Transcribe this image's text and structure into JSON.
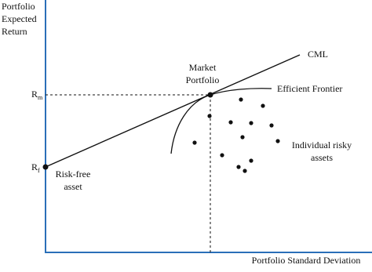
{
  "axes": {
    "y_label": [
      "Portfolio",
      "Expected",
      "Return"
    ],
    "x_label": "Portfolio Standard Deviation"
  },
  "labels": {
    "rm": {
      "main": "R",
      "sub": "m"
    },
    "rf": {
      "main": "R",
      "sub": "f"
    },
    "cml": "CML",
    "market_portfolio": [
      "Market",
      "Portfolio"
    ],
    "efficient_frontier": "Efficient Frontier",
    "risky_assets": [
      "Individual risky",
      "assets"
    ],
    "risk_free_asset": [
      "Risk-free",
      "asset"
    ]
  }
}
